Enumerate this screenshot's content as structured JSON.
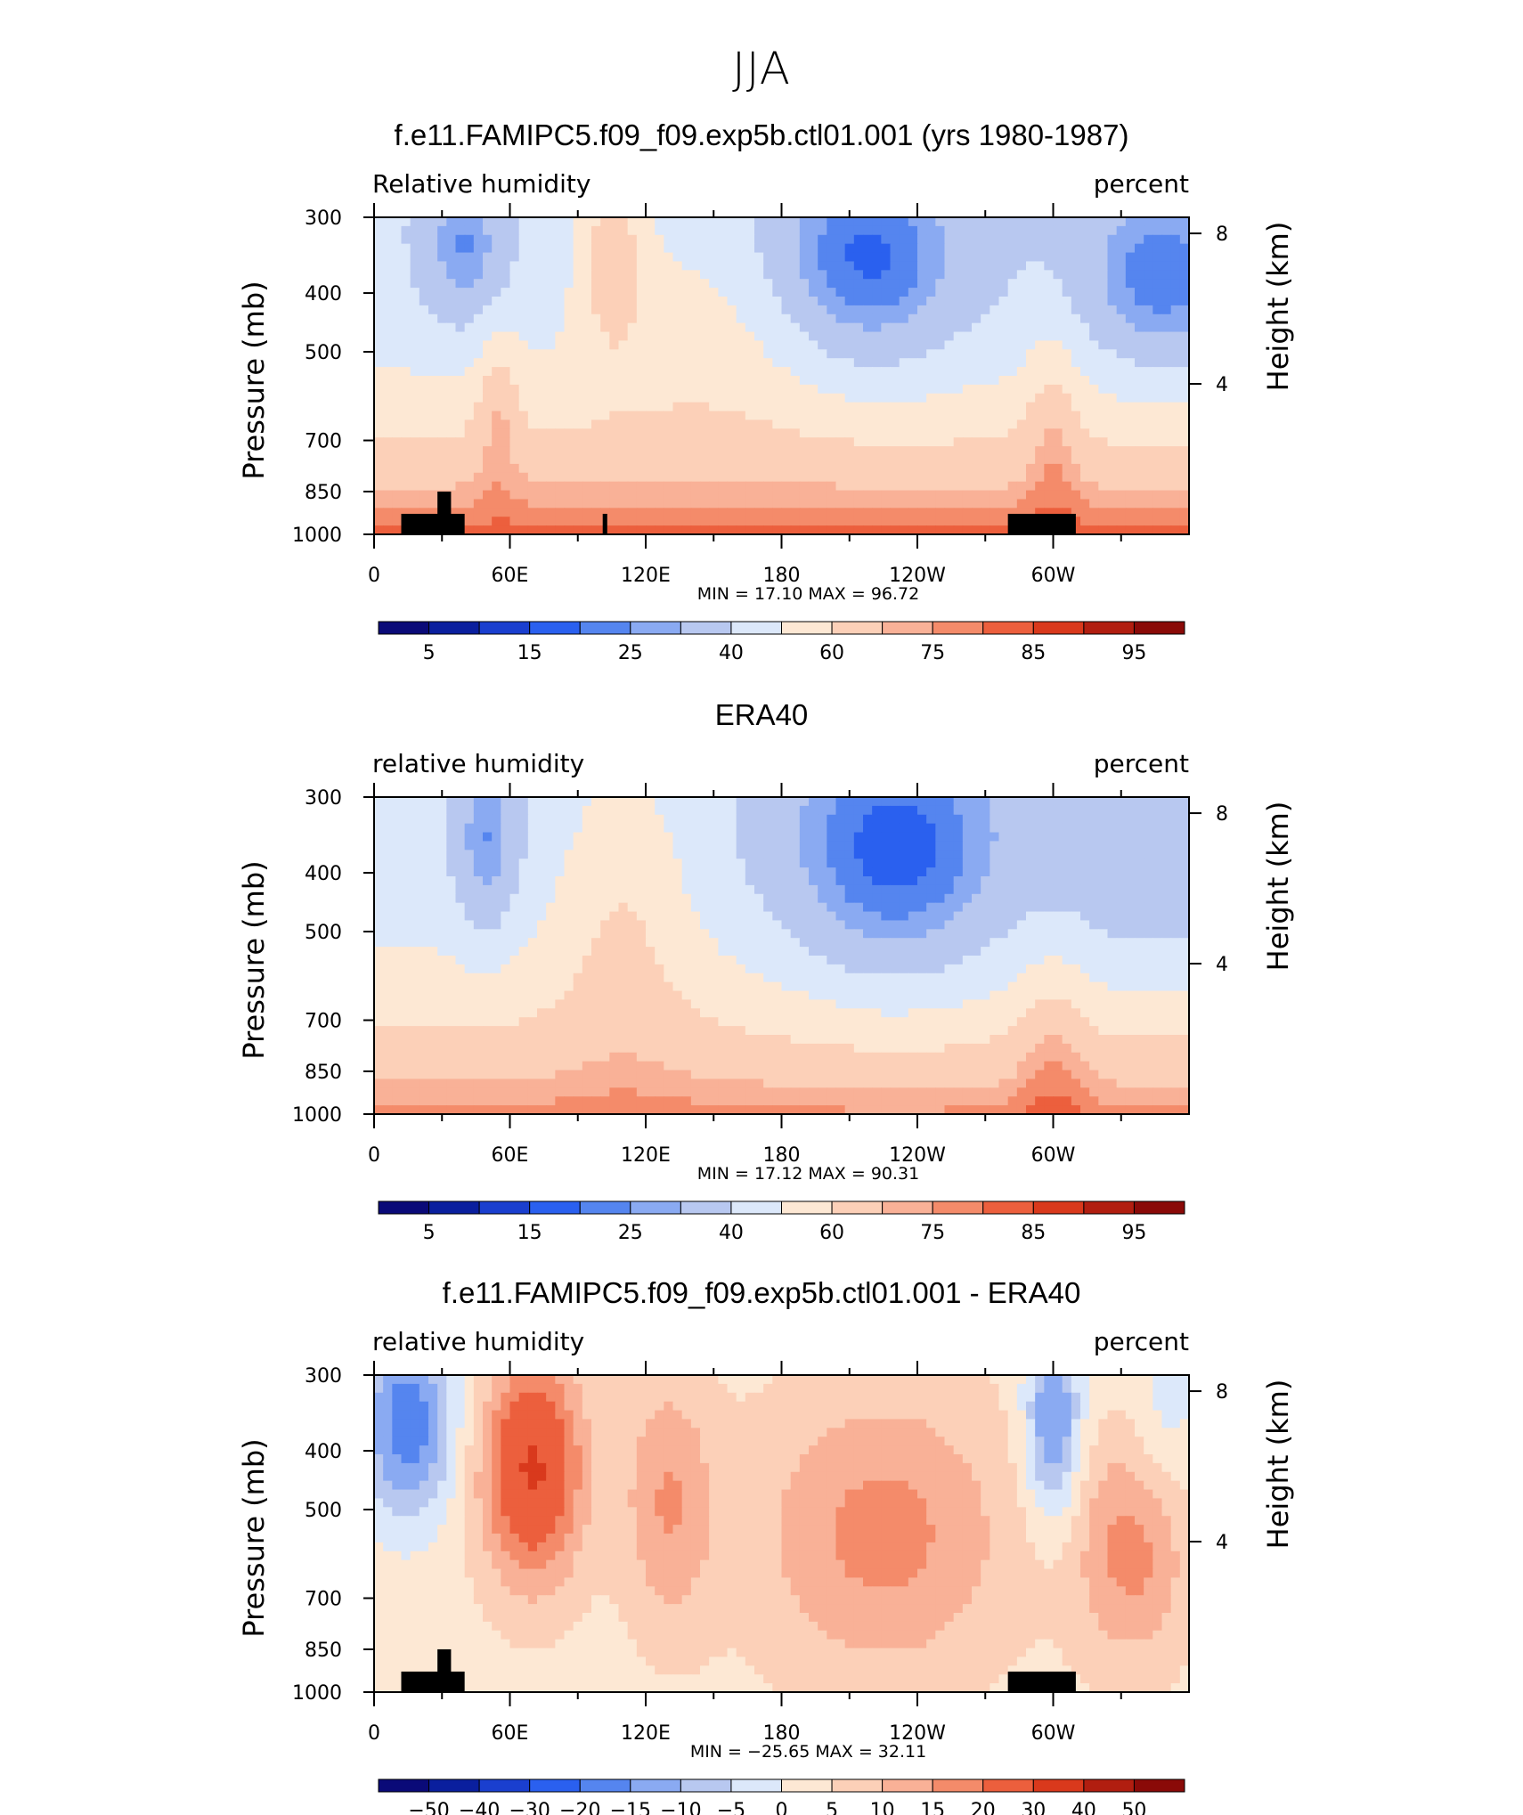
{
  "figure": {
    "supertitle": "JJA"
  },
  "colorbar_colors": {
    "humidity": [
      "#0a0a78",
      "#0a1f9e",
      "#1a3fcf",
      "#2a60ef",
      "#5585ef",
      "#8aaaf2",
      "#b8c8f0",
      "#dce8fa",
      "#fde8d4",
      "#fcd0b8",
      "#f9b197",
      "#f48b6a",
      "#ec5f3d",
      "#d9391c",
      "#b11e10",
      "#8a0a08"
    ],
    "difference": [
      "#0a0a78",
      "#0a1f9e",
      "#1a3fcf",
      "#2a60ef",
      "#5585ef",
      "#8aaaf2",
      "#b8c8f0",
      "#dce8fa",
      "#fde8d4",
      "#fcd0b8",
      "#f9b197",
      "#f48b6a",
      "#ec5f3d",
      "#d9391c",
      "#b11e10",
      "#8a0a08"
    ]
  },
  "chart_data": [
    {
      "type": "heatmap",
      "title": "f.e11.FAMIPC5.f09_f09.exp5b.ctl01.001 (yrs 1980-1987)",
      "left_label": "Relative humidity",
      "right_label": "percent",
      "ylabel": "Pressure (mb)",
      "y2label": "Height (km)",
      "ylim": [
        1000,
        300
      ],
      "yticks": [
        300,
        400,
        500,
        700,
        850,
        1000
      ],
      "y2ticks": [
        8,
        4
      ],
      "xlim": [
        0,
        360
      ],
      "xticks": [
        "0",
        "60E",
        "120E",
        "180",
        "120W",
        "60W"
      ],
      "stats": {
        "min_label": "MIN =",
        "min": "17.10",
        "max_label": "MAX =",
        "max": "96.72"
      },
      "colorbar_labels": [
        "5",
        "15",
        "25",
        "40",
        "60",
        "75",
        "85",
        "95"
      ],
      "colorbar_scheme": "humidity",
      "field": "model"
    },
    {
      "type": "heatmap",
      "title": "ERA40",
      "left_label": "relative humidity",
      "right_label": "percent",
      "ylabel": "Pressure (mb)",
      "y2label": "Height (km)",
      "ylim": [
        1000,
        300
      ],
      "yticks": [
        300,
        400,
        500,
        700,
        850,
        1000
      ],
      "y2ticks": [
        8,
        4
      ],
      "xlim": [
        0,
        360
      ],
      "xticks": [
        "0",
        "60E",
        "120E",
        "180",
        "120W",
        "60W"
      ],
      "stats": {
        "min_label": "MIN =",
        "min": "17.12",
        "max_label": "MAX =",
        "max": "90.31"
      },
      "colorbar_labels": [
        "5",
        "15",
        "25",
        "40",
        "60",
        "75",
        "85",
        "95"
      ],
      "colorbar_scheme": "humidity",
      "field": "obs"
    },
    {
      "type": "heatmap",
      "title": "f.e11.FAMIPC5.f09_f09.exp5b.ctl01.001 - ERA40",
      "left_label": "relative humidity",
      "right_label": "percent",
      "ylabel": "Pressure (mb)",
      "y2label": "Height (km)",
      "ylim": [
        1000,
        300
      ],
      "yticks": [
        300,
        400,
        500,
        700,
        850,
        1000
      ],
      "y2ticks": [
        8,
        4
      ],
      "xlim": [
        0,
        360
      ],
      "xticks": [
        "0",
        "60E",
        "120E",
        "180",
        "120W",
        "60W"
      ],
      "stats": {
        "min_label": "MIN =",
        "min": "−25.65",
        "max_label": "MAX =",
        "max": "32.11"
      },
      "colorbar_labels": [
        "−50",
        "−40",
        "−30",
        "−20",
        "−15",
        "−10",
        "−5",
        "0",
        "5",
        "10",
        "15",
        "20",
        "30",
        "40",
        "50"
      ],
      "colorbar_scheme": "difference",
      "field": "diff"
    }
  ]
}
